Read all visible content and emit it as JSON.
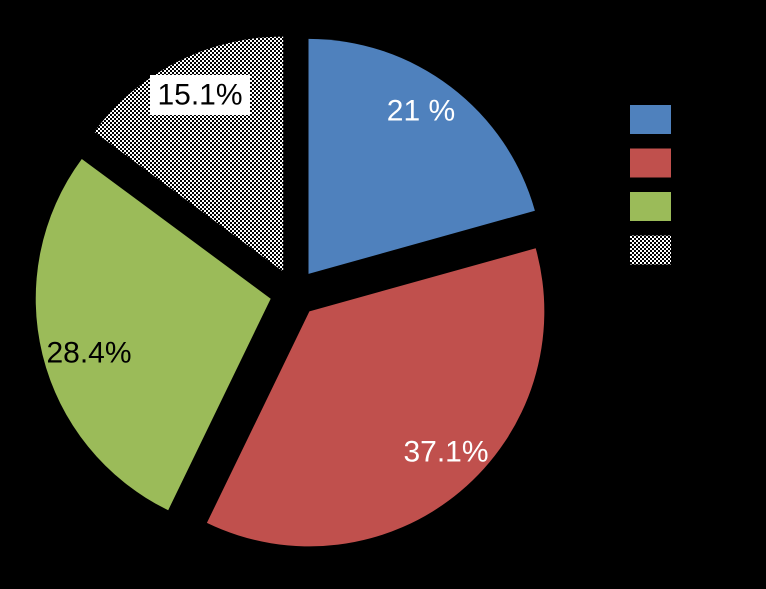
{
  "canvas": {
    "background": "#000000"
  },
  "chart_data": {
    "type": "pie",
    "exploded": true,
    "direction": "clockwise",
    "start_angle_clockwise_from_top_deg": 0,
    "title": "",
    "slices": [
      {
        "name": "blue",
        "label": "21 %",
        "value": 21.0,
        "fill": "#4F81BD",
        "pattern": null,
        "label_color": "#FFFFFF",
        "label_background": null
      },
      {
        "name": "red",
        "label": "37.1%",
        "value": 37.1,
        "fill": "#C0504D",
        "pattern": null,
        "label_color": "#FFFFFF",
        "label_background": null
      },
      {
        "name": "green",
        "label": "28.4%",
        "value": 28.4,
        "fill": "#9BBB59",
        "pattern": null,
        "label_color": "#000000",
        "label_background": null
      },
      {
        "name": "checker",
        "label": "15.1%",
        "value": 15.1,
        "fill": "#FFFFFF",
        "pattern": "checkerboard",
        "label_color": "#000000",
        "label_background": "#FFFFFF"
      }
    ],
    "legend": {
      "position": "right",
      "labels_visible": false,
      "swatches": [
        {
          "name": "blue",
          "fill": "#4F81BD",
          "pattern": null
        },
        {
          "name": "red",
          "fill": "#C0504D",
          "pattern": null
        },
        {
          "name": "green",
          "fill": "#9BBB59",
          "pattern": null
        },
        {
          "name": "checker",
          "fill": "#FFFFFF",
          "pattern": "checkerboard"
        }
      ]
    },
    "pattern_colors": {
      "checkerboard_fg": "#000000",
      "checkerboard_bg": "#FFFFFF"
    }
  }
}
